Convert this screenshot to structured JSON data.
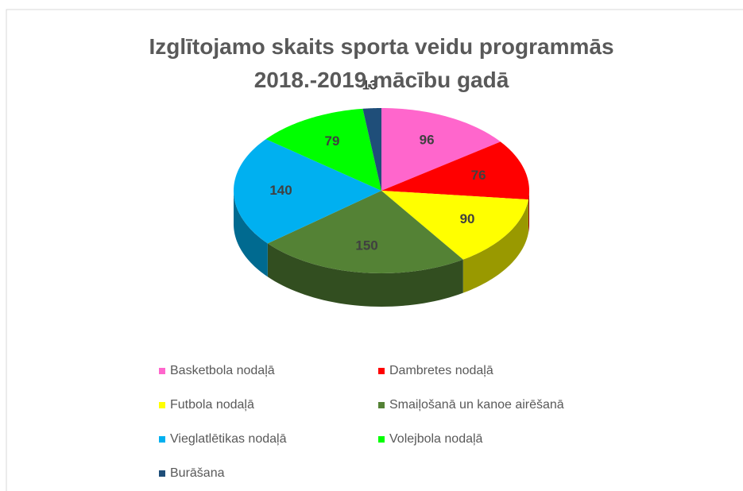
{
  "chart_data": {
    "type": "pie",
    "title": "Izglītojamo skaits  sporta veidu programmās 2018.-2019.mācību gadā",
    "categories": [
      "Basketbola nodaļā",
      "Dambretes nodaļā",
      "Futbola nodaļā",
      "Smaiļošanā un kanoe airēšanā",
      "Vieglatlētikas nodaļā",
      "Volejbola nodaļā",
      "Burāšana"
    ],
    "values": [
      96,
      76,
      90,
      150,
      140,
      79,
      13
    ],
    "colors": [
      "#ff66cc",
      "#ff0000",
      "#ffff00",
      "#548235",
      "#00b0f0",
      "#00ff00",
      "#1f4e79"
    ],
    "legend": "bottom"
  }
}
